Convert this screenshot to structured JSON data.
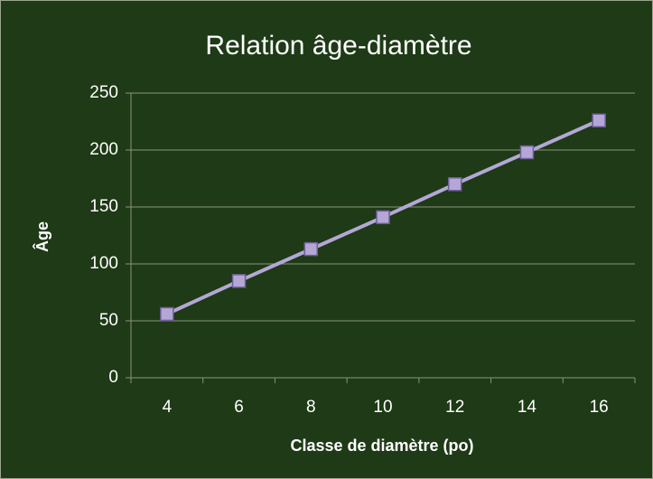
{
  "chart_data": {
    "type": "line",
    "title": "Relation âge-diamètre",
    "x_label": "Classe de diamètre (po)",
    "y_label": "Âge",
    "categories": [
      "4",
      "6",
      "8",
      "10",
      "12",
      "14",
      "16"
    ],
    "series": [
      {
        "name": "Âge",
        "color": "#b4a7d6",
        "values": [
          56,
          85,
          113,
          141,
          170,
          198,
          226
        ]
      }
    ],
    "ylim": [
      0,
      250
    ],
    "yticks": [
      0,
      50,
      100,
      150,
      200,
      250
    ],
    "grid": true
  }
}
